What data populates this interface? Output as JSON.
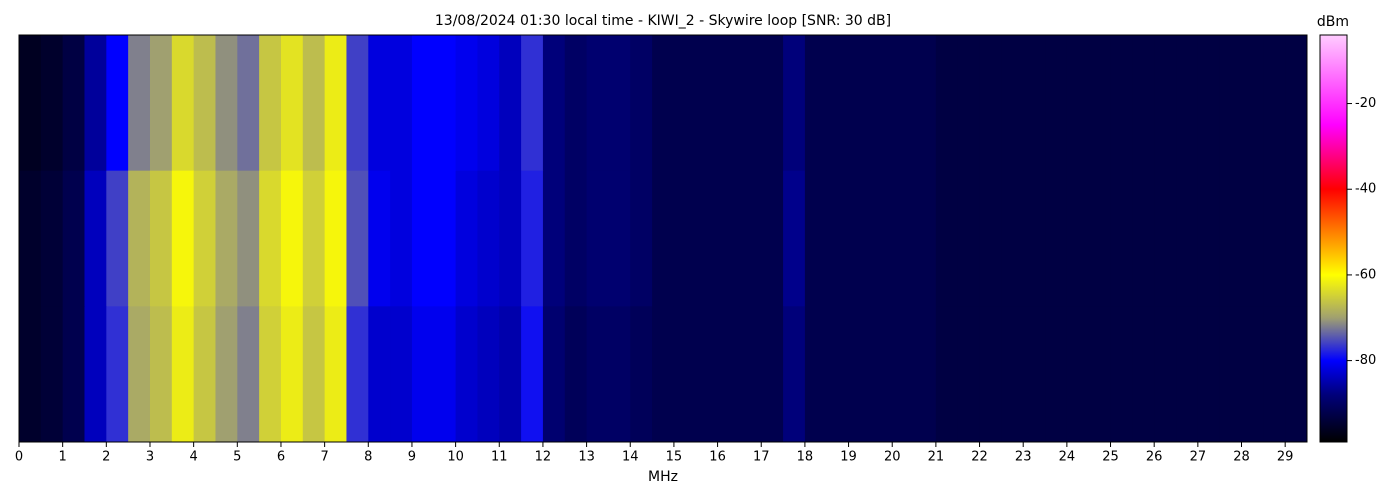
{
  "chart_data": {
    "type": "heatmap",
    "title": "13/08/2024 01:30 local time - KIWI_2 - Skywire loop [SNR: 30 dB]",
    "x_label": "MHz",
    "colorbar_label": "dBm",
    "xlim": [
      0,
      29.5
    ],
    "xticks": [
      0,
      1,
      2,
      3,
      4,
      5,
      6,
      7,
      8,
      9,
      10,
      11,
      12,
      13,
      14,
      15,
      16,
      17,
      18,
      19,
      20,
      21,
      22,
      23,
      24,
      25,
      26,
      27,
      28,
      29
    ],
    "bins": [
      0,
      0.5,
      1,
      1.5,
      2,
      2.5,
      3,
      3.5,
      4,
      4.5,
      5,
      5.5,
      6,
      6.5,
      7,
      7.5,
      8,
      8.5,
      9,
      9.5,
      10,
      10.5,
      11,
      11.5,
      12,
      12.5,
      13,
      13.5,
      14,
      14.5,
      15,
      15.5,
      16,
      16.5,
      17,
      17.5,
      18,
      18.5,
      19,
      19.5,
      20,
      20.5,
      21,
      21.5,
      22,
      22.5,
      23,
      23.5,
      24,
      24.5,
      25,
      25.5,
      26,
      26.5,
      27,
      27.5,
      28,
      28.5,
      29,
      29.5
    ],
    "z": [
      [
        -96,
        -95,
        -93,
        -86,
        -80,
        -72,
        -70,
        -64,
        -67,
        -71,
        -73,
        -66,
        -63,
        -67,
        -62,
        -76,
        -82,
        -82,
        -80,
        -80,
        -81,
        -82,
        -84,
        -77,
        -88,
        -90,
        -89,
        -89,
        -90,
        -92,
        -92,
        -92,
        -92,
        -92,
        -92,
        -88,
        -92,
        -92,
        -92,
        -92,
        -92,
        -92,
        -93,
        -93,
        -93,
        -93,
        -93,
        -93,
        -93,
        -93,
        -93,
        -93,
        -93,
        -93,
        -93,
        -93,
        -93,
        -93,
        -93
      ],
      [
        -95,
        -94,
        -92,
        -84,
        -76,
        -68,
        -66,
        -61,
        -65,
        -69,
        -71,
        -64,
        -61,
        -65,
        -61,
        -75,
        -81,
        -82,
        -80,
        -80,
        -82,
        -83,
        -84,
        -78,
        -88,
        -90,
        -89,
        -89,
        -90,
        -92,
        -92,
        -92,
        -92,
        -92,
        -92,
        -87,
        -92,
        -92,
        -92,
        -92,
        -92,
        -92,
        -93,
        -93,
        -93,
        -93,
        -93,
        -93,
        -93,
        -93,
        -93,
        -93,
        -93,
        -93,
        -93,
        -93,
        -93,
        -93,
        -93
      ],
      [
        -95,
        -94,
        -92,
        -84,
        -77,
        -69,
        -67,
        -62,
        -66,
        -70,
        -72,
        -65,
        -62,
        -66,
        -62,
        -77,
        -83,
        -83,
        -81,
        -81,
        -83,
        -84,
        -85,
        -79,
        -89,
        -91,
        -90,
        -90,
        -91,
        -92,
        -92,
        -92,
        -92,
        -92,
        -92,
        -88,
        -92,
        -92,
        -92,
        -92,
        -92,
        -92,
        -93,
        -93,
        -93,
        -93,
        -93,
        -93,
        -93,
        -93,
        -93,
        -93,
        -93,
        -93,
        -93,
        -93,
        -93,
        -93,
        -93
      ]
    ],
    "clim": [
      -99,
      -4
    ],
    "cticks": [
      -20,
      -40,
      -60,
      -80
    ],
    "colormap": [
      {
        "value": -99,
        "color": "#000000"
      },
      {
        "value": -88,
        "color": "#00007a"
      },
      {
        "value": -80,
        "color": "#0000ff"
      },
      {
        "value": -70,
        "color": "#a0a070"
      },
      {
        "value": -60,
        "color": "#ffff00"
      },
      {
        "value": -40,
        "color": "#ff0000"
      },
      {
        "value": -25,
        "color": "#ff00ff"
      },
      {
        "value": -4,
        "color": "#ffccff"
      }
    ]
  }
}
